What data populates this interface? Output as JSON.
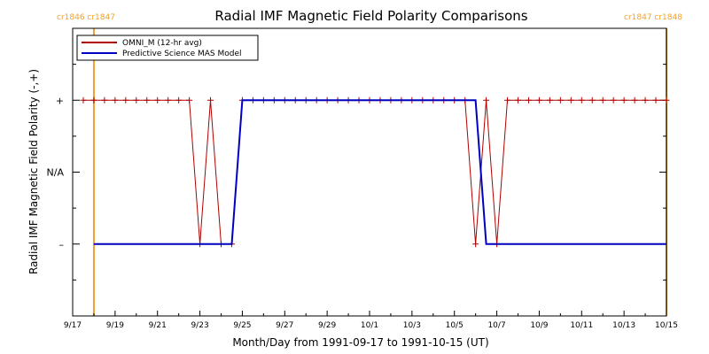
{
  "chart_data": {
    "type": "line",
    "title": "Radial IMF Magnetic Field Polarity Comparisons",
    "xlabel": "Month/Day from 1991-09-17 to 1991-10-15 (UT)",
    "ylabel": "Radial IMF Magnetic Field Polarity (-,+)",
    "x_start": "1991-09-17",
    "xlim": [
      "1991-09-17",
      "1991-10-15"
    ],
    "x_tick_labels": [
      "9/17",
      "9/19",
      "9/21",
      "9/23",
      "9/25",
      "9/27",
      "9/29",
      "10/1",
      "10/3",
      "10/5",
      "10/7",
      "10/9",
      "10/11",
      "10/13",
      "10/15"
    ],
    "y_tick_labels": [
      "+",
      "N/A",
      "–"
    ],
    "y_tick_values": [
      1,
      0,
      -1
    ],
    "ylim": [
      -2,
      2
    ],
    "legend_position": "top-left",
    "carrington_markers": [
      {
        "x": "1991-09-18",
        "left_label": "cr1846",
        "right_label": "cr1847",
        "label_side": "left"
      },
      {
        "x": "1991-10-15",
        "left_label": "cr1847",
        "right_label": "cr1848",
        "label_side": "right"
      }
    ],
    "series": [
      {
        "name": "OMNI_M (12-hr avg)",
        "color": "#b00000",
        "marker": "plus",
        "points": [
          [
            "1991-09-17 12:00",
            1
          ],
          [
            "1991-09-18",
            1
          ],
          [
            "1991-09-18 12:00",
            1
          ],
          [
            "1991-09-19",
            1
          ],
          [
            "1991-09-19 12:00",
            1
          ],
          [
            "1991-09-20",
            1
          ],
          [
            "1991-09-20 12:00",
            1
          ],
          [
            "1991-09-21",
            1
          ],
          [
            "1991-09-21 12:00",
            1
          ],
          [
            "1991-09-22",
            1
          ],
          [
            "1991-09-22 12:00",
            1
          ],
          [
            "1991-09-23",
            -1
          ],
          [
            "1991-09-23 12:00",
            1
          ],
          [
            "1991-09-24",
            -1
          ],
          [
            "1991-09-24 12:00",
            -1
          ],
          [
            "1991-09-25",
            1
          ],
          [
            "1991-09-25 12:00",
            1
          ],
          [
            "1991-09-26",
            1
          ],
          [
            "1991-09-26 12:00",
            1
          ],
          [
            "1991-09-27",
            1
          ],
          [
            "1991-09-27 12:00",
            1
          ],
          [
            "1991-09-28",
            1
          ],
          [
            "1991-09-28 12:00",
            1
          ],
          [
            "1991-09-29",
            1
          ],
          [
            "1991-09-29 12:00",
            1
          ],
          [
            "1991-09-30",
            1
          ],
          [
            "1991-09-30 12:00",
            1
          ],
          [
            "1991-10-01",
            1
          ],
          [
            "1991-10-01 12:00",
            1
          ],
          [
            "1991-10-02",
            1
          ],
          [
            "1991-10-02 12:00",
            1
          ],
          [
            "1991-10-03",
            1
          ],
          [
            "1991-10-03 12:00",
            1
          ],
          [
            "1991-10-04",
            1
          ],
          [
            "1991-10-04 12:00",
            1
          ],
          [
            "1991-10-05",
            1
          ],
          [
            "1991-10-05 12:00",
            1
          ],
          [
            "1991-10-06",
            -1
          ],
          [
            "1991-10-06 12:00",
            1
          ],
          [
            "1991-10-07",
            -1
          ],
          [
            "1991-10-07 12:00",
            1
          ],
          [
            "1991-10-08",
            1
          ],
          [
            "1991-10-08 12:00",
            1
          ],
          [
            "1991-10-09",
            1
          ],
          [
            "1991-10-09 12:00",
            1
          ],
          [
            "1991-10-10",
            1
          ],
          [
            "1991-10-10 12:00",
            1
          ],
          [
            "1991-10-11",
            1
          ],
          [
            "1991-10-11 12:00",
            1
          ],
          [
            "1991-10-12",
            1
          ],
          [
            "1991-10-12 12:00",
            1
          ],
          [
            "1991-10-13",
            1
          ],
          [
            "1991-10-13 12:00",
            1
          ],
          [
            "1991-10-14",
            1
          ],
          [
            "1991-10-14 12:00",
            1
          ],
          [
            "1991-10-15",
            1
          ]
        ]
      },
      {
        "name": "Predictive Science MAS Model",
        "color": "#0000c0",
        "marker": "none",
        "points": [
          [
            "1991-09-18",
            -1
          ],
          [
            "1991-09-24 12:00",
            -1
          ],
          [
            "1991-09-25",
            1
          ],
          [
            "1991-10-06",
            1
          ],
          [
            "1991-10-06 12:00",
            -1
          ],
          [
            "1991-10-15",
            -1
          ]
        ]
      }
    ]
  }
}
